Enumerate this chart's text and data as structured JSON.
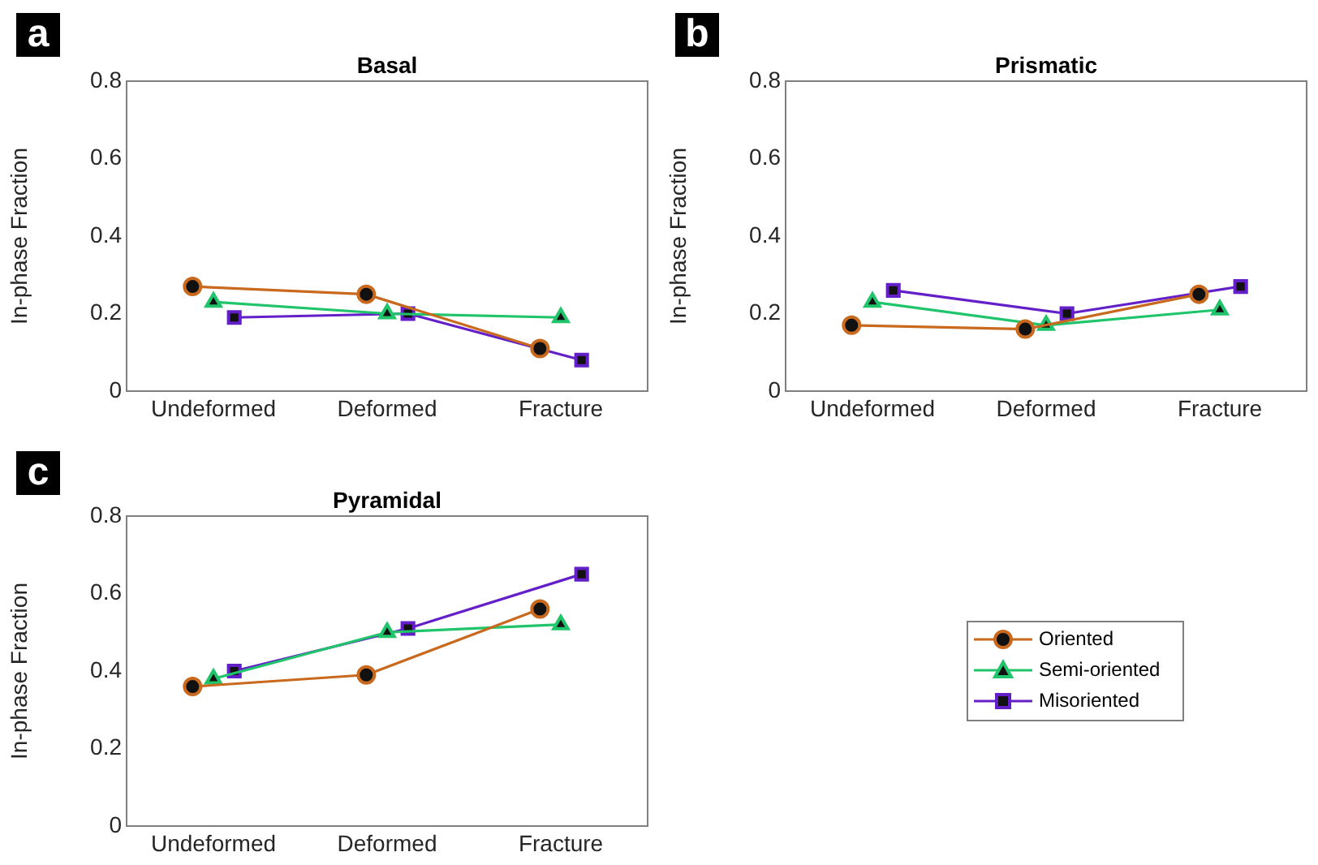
{
  "chart_data": [
    {
      "type": "line",
      "title": "Basal",
      "ylabel": "In-phase Fraction",
      "annotations": [
        "a"
      ],
      "categories": [
        "Undeformed",
        "Deformed",
        "Fracture"
      ],
      "ylim": [
        0,
        0.8
      ],
      "yticks": [
        0,
        0.2,
        0.4,
        0.6,
        0.8
      ],
      "grid": false,
      "legend": false,
      "line_style": "solid",
      "series": [
        {
          "color": "#c8691e",
          "marker": "circle",
          "values": [
            0.27,
            0.25,
            0.11
          ]
        },
        {
          "color": "#20c46a",
          "marker": "triangle",
          "values": [
            0.23,
            0.2,
            0.19
          ]
        },
        {
          "color": "#6420c8",
          "marker": "square",
          "values": [
            0.19,
            0.2,
            0.08
          ]
        }
      ]
    },
    {
      "type": "line",
      "title": "Prismatic",
      "ylabel": "In-phase Fraction",
      "annotations": [
        "b"
      ],
      "categories": [
        "Undeformed",
        "Deformed",
        "Fracture"
      ],
      "ylim": [
        0,
        0.8
      ],
      "yticks": [
        0,
        0.2,
        0.4,
        0.6,
        0.8
      ],
      "grid": false,
      "legend": false,
      "line_style": "solid",
      "series": [
        {
          "color": "#c8691e",
          "marker": "circle",
          "values": [
            0.17,
            0.16,
            0.25
          ]
        },
        {
          "color": "#20c46a",
          "marker": "triangle",
          "values": [
            0.23,
            0.17,
            0.21
          ]
        },
        {
          "color": "#6420c8",
          "marker": "square",
          "values": [
            0.26,
            0.2,
            0.27
          ]
        }
      ]
    },
    {
      "type": "line",
      "title": "Pyramidal",
      "ylabel": "In-phase Fraction",
      "annotations": [
        "c"
      ],
      "categories": [
        "Undeformed",
        "Deformed",
        "Fracture"
      ],
      "ylim": [
        0,
        0.8
      ],
      "yticks": [
        0,
        0.2,
        0.4,
        0.6,
        0.8
      ],
      "grid": false,
      "legend": "right",
      "line_style": "solid",
      "series": [
        {
          "name": "Oriented",
          "color": "#c8691e",
          "marker": "circle",
          "values": [
            0.36,
            0.39,
            0.56
          ]
        },
        {
          "name": "Semi-oriented",
          "color": "#20c46a",
          "marker": "triangle",
          "values": [
            0.38,
            0.5,
            0.52
          ]
        },
        {
          "name": "Misoriented",
          "color": "#6420c8",
          "marker": "square",
          "values": [
            0.4,
            0.51,
            0.65
          ]
        }
      ]
    }
  ]
}
